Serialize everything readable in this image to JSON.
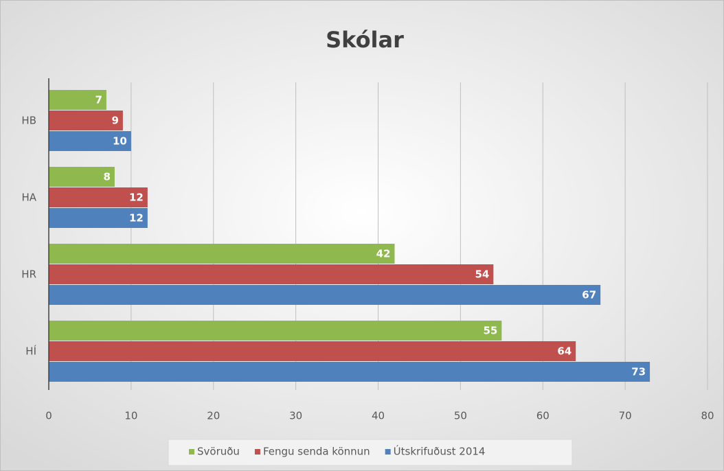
{
  "chart_data": {
    "type": "hbar",
    "title": "Skólar",
    "categories": [
      "HÍ",
      "HR",
      "HA",
      "HB"
    ],
    "series": [
      {
        "name": "Svöruðu",
        "color": "#8fb84f",
        "values": [
          55,
          42,
          8,
          7
        ]
      },
      {
        "name": "Fengu senda könnun",
        "color": "#c0504d",
        "values": [
          64,
          54,
          12,
          9
        ]
      },
      {
        "name": "Útskrifuðust 2014",
        "color": "#4f81bd",
        "values": [
          73,
          67,
          12,
          10
        ]
      }
    ],
    "xlim": [
      0,
      80
    ],
    "xticks": [
      0,
      10,
      20,
      30,
      40,
      50,
      60,
      70,
      80
    ],
    "grid": true,
    "legend": "bottom"
  }
}
